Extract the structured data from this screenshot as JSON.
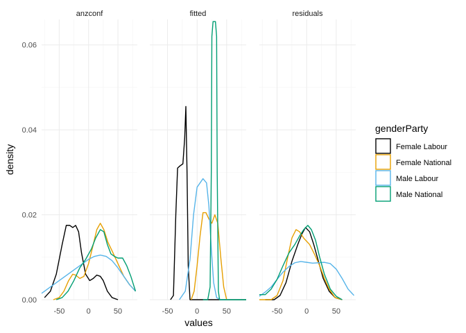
{
  "chart_data": {
    "type": "line",
    "subtype": "density",
    "facets": [
      "anzconf",
      "fitted",
      "residuals"
    ],
    "xlabel": "values",
    "ylabel": "density",
    "xlim": [
      -80,
      83
    ],
    "ylim": [
      0,
      0.066
    ],
    "xticks": [
      -50,
      0,
      50
    ],
    "yticks": [
      0.0,
      0.02,
      0.04,
      0.06
    ],
    "ytick_labels": [
      "0.00",
      "0.02",
      "0.04",
      "0.06"
    ],
    "grid": true,
    "legend": {
      "title": "genderParty",
      "position": "right",
      "entries": [
        "Female Labour",
        "Female National",
        "Male Labour",
        "Male National"
      ]
    },
    "series": [
      {
        "name": "Female Labour",
        "color": "#000000",
        "facets": {
          "anzconf": [
            [
              -75,
              0.0005
            ],
            [
              -65,
              0.002
            ],
            [
              -55,
              0.006
            ],
            [
              -45,
              0.013
            ],
            [
              -38,
              0.0175
            ],
            [
              -32,
              0.0175
            ],
            [
              -27,
              0.017
            ],
            [
              -22,
              0.0175
            ],
            [
              -17,
              0.016
            ],
            [
              -12,
              0.011
            ],
            [
              -5,
              0.006
            ],
            [
              2,
              0.0045
            ],
            [
              8,
              0.005
            ],
            [
              14,
              0.0058
            ],
            [
              20,
              0.0055
            ],
            [
              25,
              0.0045
            ],
            [
              32,
              0.002
            ],
            [
              40,
              0.0005
            ],
            [
              50,
              0.0
            ]
          ],
          "fitted": [
            [
              -45,
              0.0
            ],
            [
              -40,
              0.001
            ],
            [
              -36,
              0.02
            ],
            [
              -33,
              0.031
            ],
            [
              -29,
              0.0315
            ],
            [
              -24,
              0.032
            ],
            [
              -21,
              0.038
            ],
            [
              -19,
              0.0455
            ],
            [
              -17,
              0.03
            ],
            [
              -15,
              0.008
            ],
            [
              -12,
              0.0
            ],
            [
              83,
              0.0
            ]
          ],
          "residuals": [
            [
              -70,
              0.0
            ],
            [
              -55,
              0.0
            ],
            [
              -45,
              0.001
            ],
            [
              -35,
              0.004
            ],
            [
              -25,
              0.009
            ],
            [
              -15,
              0.013
            ],
            [
              -8,
              0.0155
            ],
            [
              -2,
              0.017
            ],
            [
              5,
              0.016
            ],
            [
              12,
              0.013
            ],
            [
              20,
              0.009
            ],
            [
              28,
              0.005
            ],
            [
              38,
              0.002
            ],
            [
              48,
              0.0005
            ],
            [
              60,
              0.0
            ]
          ]
        }
      },
      {
        "name": "Female National",
        "color": "#E69F00",
        "facets": {
          "anzconf": [
            [
              -60,
              0.0
            ],
            [
              -50,
              0.0005
            ],
            [
              -42,
              0.002
            ],
            [
              -34,
              0.0045
            ],
            [
              -27,
              0.006
            ],
            [
              -22,
              0.0058
            ],
            [
              -15,
              0.005
            ],
            [
              -8,
              0.0055
            ],
            [
              0,
              0.0085
            ],
            [
              8,
              0.013
            ],
            [
              14,
              0.0165
            ],
            [
              20,
              0.018
            ],
            [
              26,
              0.0165
            ],
            [
              33,
              0.0135
            ],
            [
              40,
              0.0115
            ],
            [
              50,
              0.0085
            ],
            [
              60,
              0.0055
            ],
            [
              70,
              0.0035
            ],
            [
              80,
              0.002
            ]
          ],
          "fitted": [
            [
              -10,
              0.0
            ],
            [
              -5,
              0.002
            ],
            [
              0,
              0.008
            ],
            [
              5,
              0.015
            ],
            [
              10,
              0.0205
            ],
            [
              15,
              0.0205
            ],
            [
              20,
              0.019
            ],
            [
              25,
              0.018
            ],
            [
              30,
              0.02
            ],
            [
              35,
              0.018
            ],
            [
              40,
              0.01
            ],
            [
              45,
              0.003
            ],
            [
              50,
              0.0
            ],
            [
              83,
              0.0
            ]
          ],
          "residuals": [
            [
              -80,
              0.0
            ],
            [
              -60,
              0.0
            ],
            [
              -50,
              0.001
            ],
            [
              -40,
              0.0045
            ],
            [
              -32,
              0.01
            ],
            [
              -25,
              0.0145
            ],
            [
              -18,
              0.0165
            ],
            [
              -12,
              0.016
            ],
            [
              -5,
              0.0145
            ],
            [
              5,
              0.013
            ],
            [
              14,
              0.0105
            ],
            [
              22,
              0.008
            ],
            [
              30,
              0.005
            ],
            [
              38,
              0.0025
            ],
            [
              48,
              0.0005
            ],
            [
              60,
              0.0
            ]
          ]
        }
      },
      {
        "name": "Male Labour",
        "color": "#56B4E9",
        "facets": {
          "anzconf": [
            [
              -80,
              0.0015
            ],
            [
              -70,
              0.0025
            ],
            [
              -60,
              0.0035
            ],
            [
              -50,
              0.0045
            ],
            [
              -40,
              0.0055
            ],
            [
              -30,
              0.0065
            ],
            [
              -20,
              0.0075
            ],
            [
              -10,
              0.0085
            ],
            [
              0,
              0.0095
            ],
            [
              10,
              0.0102
            ],
            [
              20,
              0.0105
            ],
            [
              30,
              0.0102
            ],
            [
              40,
              0.0092
            ],
            [
              50,
              0.0075
            ],
            [
              60,
              0.0055
            ],
            [
              70,
              0.0035
            ],
            [
              80,
              0.002
            ]
          ],
          "fitted": [
            [
              -30,
              0.0
            ],
            [
              -20,
              0.002
            ],
            [
              -12,
              0.0095
            ],
            [
              -6,
              0.02
            ],
            [
              0,
              0.0265
            ],
            [
              5,
              0.0275
            ],
            [
              10,
              0.0285
            ],
            [
              16,
              0.0275
            ],
            [
              20,
              0.022
            ],
            [
              24,
              0.012
            ],
            [
              28,
              0.004
            ],
            [
              33,
              0.0005
            ],
            [
              40,
              0.0
            ],
            [
              83,
              0.0
            ]
          ],
          "residuals": [
            [
              -80,
              0.0008
            ],
            [
              -70,
              0.0018
            ],
            [
              -60,
              0.003
            ],
            [
              -50,
              0.0048
            ],
            [
              -40,
              0.0065
            ],
            [
              -30,
              0.0078
            ],
            [
              -20,
              0.0087
            ],
            [
              -10,
              0.009
            ],
            [
              0,
              0.0088
            ],
            [
              10,
              0.0086
            ],
            [
              20,
              0.0087
            ],
            [
              30,
              0.0088
            ],
            [
              40,
              0.0085
            ],
            [
              50,
              0.0072
            ],
            [
              60,
              0.005
            ],
            [
              70,
              0.0025
            ],
            [
              80,
              0.001
            ]
          ]
        }
      },
      {
        "name": "Male National",
        "color": "#009E73",
        "facets": {
          "anzconf": [
            [
              -55,
              0.0
            ],
            [
              -45,
              0.0005
            ],
            [
              -35,
              0.002
            ],
            [
              -25,
              0.0045
            ],
            [
              -15,
              0.0075
            ],
            [
              -5,
              0.0095
            ],
            [
              5,
              0.012
            ],
            [
              12,
              0.0145
            ],
            [
              20,
              0.0165
            ],
            [
              26,
              0.016
            ],
            [
              32,
              0.013
            ],
            [
              38,
              0.0108
            ],
            [
              44,
              0.0102
            ],
            [
              50,
              0.0098
            ],
            [
              58,
              0.0098
            ],
            [
              65,
              0.008
            ],
            [
              72,
              0.0055
            ],
            [
              80,
              0.002
            ]
          ],
          "fitted": [
            [
              10,
              0.0
            ],
            [
              18,
              0.0
            ],
            [
              22,
              0.003
            ],
            [
              24,
              0.03
            ],
            [
              25,
              0.062
            ],
            [
              27,
              0.0655
            ],
            [
              31,
              0.0655
            ],
            [
              33,
              0.062
            ],
            [
              34,
              0.03
            ],
            [
              36,
              0.002
            ],
            [
              38,
              0.0
            ],
            [
              83,
              0.0
            ]
          ],
          "residuals": [
            [
              -80,
              0.0012
            ],
            [
              -70,
              0.0012
            ],
            [
              -60,
              0.0025
            ],
            [
              -50,
              0.0048
            ],
            [
              -40,
              0.008
            ],
            [
              -30,
              0.011
            ],
            [
              -20,
              0.013
            ],
            [
              -12,
              0.015
            ],
            [
              -5,
              0.0165
            ],
            [
              2,
              0.0175
            ],
            [
              8,
              0.0165
            ],
            [
              15,
              0.014
            ],
            [
              22,
              0.01
            ],
            [
              30,
              0.006
            ],
            [
              40,
              0.0025
            ],
            [
              50,
              0.0008
            ],
            [
              60,
              0.0
            ]
          ]
        }
      }
    ]
  }
}
